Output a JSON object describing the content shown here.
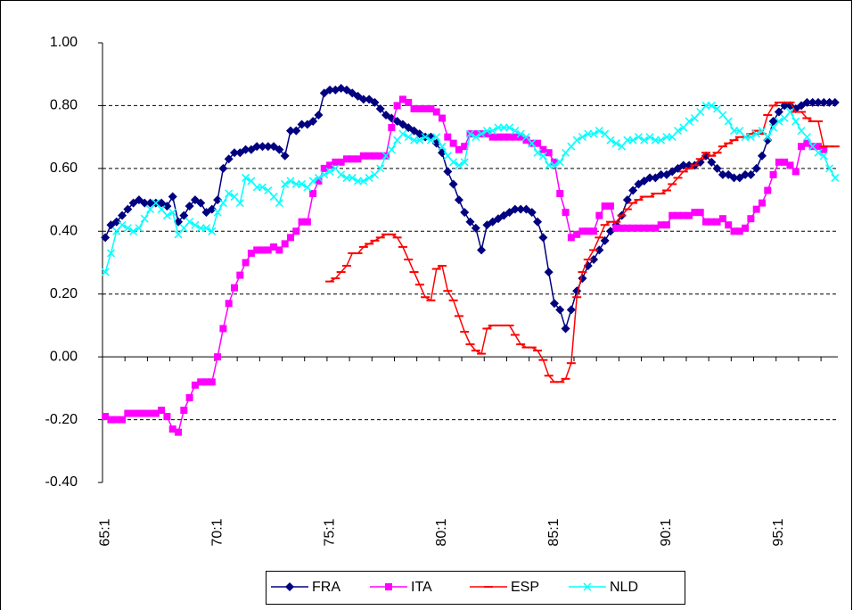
{
  "chart_data": {
    "type": "line",
    "categories": [
      "65:1",
      null,
      null,
      null,
      null,
      null,
      null,
      null,
      null,
      null,
      null,
      null,
      null,
      null,
      null,
      null,
      null,
      null,
      null,
      null,
      "70:1",
      null,
      null,
      null,
      null,
      null,
      null,
      null,
      null,
      null,
      null,
      null,
      null,
      null,
      null,
      null,
      null,
      null,
      null,
      null,
      "75:1",
      null,
      null,
      null,
      null,
      null,
      null,
      null,
      null,
      null,
      null,
      null,
      null,
      null,
      null,
      null,
      null,
      null,
      null,
      null,
      "80:1",
      null,
      null,
      null,
      null,
      null,
      null,
      null,
      null,
      null,
      null,
      null,
      null,
      null,
      null,
      null,
      null,
      null,
      null,
      null,
      "85:1",
      null,
      null,
      null,
      null,
      null,
      null,
      null,
      null,
      null,
      null,
      null,
      null,
      null,
      null,
      null,
      null,
      null,
      null,
      null,
      "90:1",
      null,
      null,
      null,
      null,
      null,
      null,
      null,
      null,
      null,
      null,
      null,
      null,
      null,
      null,
      null,
      null,
      null,
      null,
      null,
      "95:1",
      null,
      null,
      null,
      null,
      null,
      null,
      null,
      null,
      null,
      null
    ],
    "series": [
      {
        "name": "FRA",
        "color": "#000080",
        "marker": "diamond",
        "values": [
          0.38,
          0.42,
          0.43,
          0.45,
          0.47,
          0.49,
          0.5,
          0.49,
          0.49,
          0.49,
          0.49,
          0.48,
          0.51,
          0.43,
          0.45,
          0.48,
          0.5,
          0.49,
          0.46,
          0.47,
          0.5,
          0.6,
          0.63,
          0.65,
          0.65,
          0.66,
          0.66,
          0.67,
          0.67,
          0.67,
          0.67,
          0.66,
          0.64,
          0.72,
          0.72,
          0.74,
          0.74,
          0.75,
          0.77,
          0.84,
          0.85,
          0.85,
          0.855,
          0.85,
          0.84,
          0.83,
          0.82,
          0.82,
          0.81,
          0.79,
          0.77,
          0.76,
          0.75,
          0.74,
          0.73,
          0.72,
          0.71,
          0.7,
          0.7,
          0.68,
          0.65,
          0.59,
          0.55,
          0.5,
          0.46,
          0.43,
          0.41,
          0.34,
          0.42,
          0.43,
          0.44,
          0.45,
          0.46,
          0.47,
          0.47,
          0.47,
          0.46,
          0.43,
          0.38,
          0.27,
          0.17,
          0.15,
          0.09,
          0.15,
          0.21,
          0.25,
          0.29,
          0.31,
          0.34,
          0.37,
          0.4,
          0.42,
          0.45,
          0.5,
          0.53,
          0.55,
          0.56,
          0.57,
          0.57,
          0.58,
          0.58,
          0.59,
          0.6,
          0.61,
          0.61,
          0.61,
          0.62,
          0.64,
          0.62,
          0.6,
          0.58,
          0.58,
          0.57,
          0.57,
          0.58,
          0.58,
          0.6,
          0.64,
          0.69,
          0.75,
          0.78,
          0.8,
          0.8,
          0.79,
          0.8,
          0.81,
          0.81,
          0.81,
          0.81,
          0.81,
          0.81
        ]
      },
      {
        "name": "ITA",
        "color": "#FF00FF",
        "marker": "square",
        "values": [
          -0.19,
          -0.2,
          -0.2,
          -0.2,
          -0.18,
          -0.18,
          -0.18,
          -0.18,
          -0.18,
          -0.18,
          -0.17,
          -0.19,
          -0.23,
          -0.24,
          -0.17,
          -0.13,
          -0.09,
          -0.08,
          -0.08,
          -0.08,
          0.0,
          0.09,
          0.17,
          0.22,
          0.26,
          0.3,
          0.33,
          0.34,
          0.34,
          0.34,
          0.35,
          0.34,
          0.36,
          0.38,
          0.4,
          0.43,
          0.43,
          0.52,
          0.56,
          0.6,
          0.61,
          0.62,
          0.62,
          0.63,
          0.63,
          0.63,
          0.64,
          0.64,
          0.64,
          0.64,
          0.64,
          0.73,
          0.8,
          0.82,
          0.81,
          0.79,
          0.79,
          0.79,
          0.79,
          0.78,
          0.76,
          0.7,
          0.68,
          0.66,
          0.67,
          0.71,
          0.71,
          0.71,
          0.71,
          0.7,
          0.7,
          0.7,
          0.7,
          0.7,
          0.7,
          0.69,
          0.68,
          0.68,
          0.66,
          0.65,
          0.62,
          0.52,
          0.46,
          0.38,
          0.39,
          0.4,
          0.4,
          0.4,
          0.45,
          0.48,
          0.48,
          0.41,
          0.41,
          0.41,
          0.41,
          0.41,
          0.41,
          0.41,
          0.41,
          0.42,
          0.42,
          0.45,
          0.45,
          0.45,
          0.45,
          0.46,
          0.46,
          0.43,
          0.43,
          0.43,
          0.44,
          0.42,
          0.4,
          0.4,
          0.41,
          0.44,
          0.47,
          0.49,
          0.53,
          0.58,
          0.62,
          0.62,
          0.61,
          0.59,
          0.67,
          0.68,
          0.67,
          0.67,
          0.66,
          null,
          null
        ]
      },
      {
        "name": "ESP",
        "color": "#FF0000",
        "marker": "dash",
        "values": [
          null,
          null,
          null,
          null,
          null,
          null,
          null,
          null,
          null,
          null,
          null,
          null,
          null,
          null,
          null,
          null,
          null,
          null,
          null,
          null,
          null,
          null,
          null,
          null,
          null,
          null,
          null,
          null,
          null,
          null,
          null,
          null,
          null,
          null,
          null,
          null,
          null,
          null,
          null,
          null,
          0.24,
          0.25,
          0.27,
          0.29,
          0.33,
          0.33,
          0.35,
          0.36,
          0.37,
          0.38,
          0.39,
          0.39,
          0.38,
          0.35,
          0.31,
          0.27,
          0.23,
          0.19,
          0.18,
          0.28,
          0.29,
          0.21,
          0.18,
          0.13,
          0.08,
          0.04,
          0.02,
          0.01,
          0.09,
          0.1,
          0.1,
          0.1,
          0.1,
          0.07,
          0.04,
          0.03,
          0.03,
          0.02,
          -0.01,
          -0.06,
          -0.08,
          -0.08,
          -0.07,
          -0.02,
          0.19,
          0.27,
          0.31,
          0.34,
          0.38,
          0.42,
          0.43,
          0.43,
          0.45,
          0.47,
          0.49,
          0.5,
          0.51,
          0.51,
          0.52,
          0.52,
          0.53,
          0.55,
          0.57,
          0.59,
          0.6,
          0.61,
          0.63,
          0.65,
          0.64,
          0.65,
          0.67,
          0.68,
          0.69,
          0.7,
          0.7,
          0.71,
          0.72,
          0.71,
          0.77,
          0.8,
          0.81,
          0.81,
          0.81,
          0.78,
          0.78,
          0.76,
          0.75,
          0.75,
          0.67,
          0.67,
          0.67
        ]
      },
      {
        "name": "NLD",
        "color": "#00FFFF",
        "marker": "cross",
        "values": [
          0.27,
          0.33,
          0.4,
          0.42,
          0.41,
          0.4,
          0.41,
          0.44,
          0.47,
          0.49,
          0.47,
          0.45,
          0.46,
          0.39,
          0.41,
          0.43,
          0.42,
          0.41,
          0.41,
          0.4,
          0.46,
          0.49,
          0.52,
          0.51,
          0.49,
          0.57,
          0.56,
          0.54,
          0.54,
          0.53,
          0.51,
          0.49,
          0.55,
          0.56,
          0.55,
          0.55,
          0.54,
          0.56,
          0.57,
          0.58,
          0.59,
          0.6,
          0.58,
          0.57,
          0.57,
          0.56,
          0.56,
          0.57,
          0.58,
          0.6,
          0.64,
          0.66,
          0.69,
          0.71,
          0.7,
          0.69,
          0.69,
          0.7,
          0.69,
          0.7,
          0.67,
          0.64,
          0.62,
          0.61,
          0.62,
          0.71,
          0.7,
          0.71,
          0.72,
          0.72,
          0.73,
          0.73,
          0.73,
          0.72,
          0.71,
          0.7,
          0.68,
          0.65,
          0.64,
          0.61,
          0.61,
          0.62,
          0.65,
          0.67,
          0.69,
          0.7,
          0.71,
          0.71,
          0.72,
          0.71,
          0.69,
          0.68,
          0.67,
          0.69,
          0.69,
          0.7,
          0.69,
          0.7,
          0.69,
          0.69,
          0.7,
          0.7,
          0.72,
          0.73,
          0.75,
          0.76,
          0.78,
          0.8,
          0.8,
          0.79,
          0.77,
          0.75,
          0.72,
          0.72,
          0.7,
          0.7,
          0.71,
          0.72,
          0.7,
          0.73,
          0.75,
          0.76,
          0.78,
          0.75,
          0.72,
          0.7,
          0.67,
          0.65,
          0.64,
          0.6,
          0.57
        ]
      }
    ],
    "ylim": [
      -0.4,
      1.0
    ],
    "yticks": [
      {
        "value": -0.4,
        "label": "-0.40"
      },
      {
        "value": -0.2,
        "label": "-0.20"
      },
      {
        "value": 0,
        "label": "0.00"
      },
      {
        "value": 0.2,
        "label": "0.20"
      },
      {
        "value": 0.4,
        "label": "0.40"
      },
      {
        "value": 0.6,
        "label": "0.60"
      },
      {
        "value": 0.8,
        "label": "0.80"
      },
      {
        "value": 1.0,
        "label": "1.00"
      }
    ],
    "grid": true,
    "legend": "bottom"
  }
}
